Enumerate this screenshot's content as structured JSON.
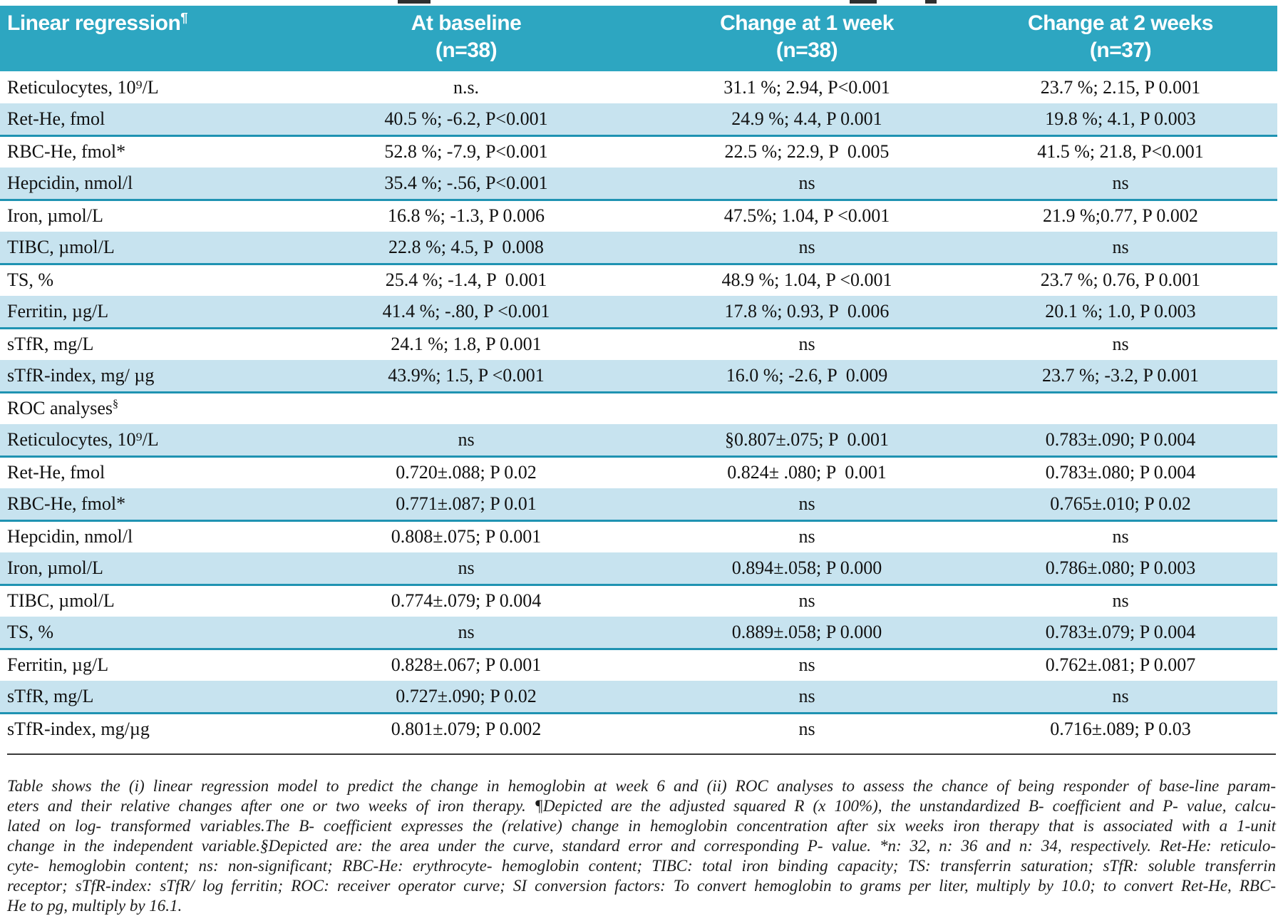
{
  "colors": {
    "header_bg": "#2da6c1",
    "stripe_bg": "#c7e3ef",
    "rule_teal": "#1f93b2",
    "footnote_rule": "#3a3a3a",
    "header_text": "#ffffff",
    "body_text": "#111111"
  },
  "table": {
    "header": {
      "col1": {
        "text": "Linear regression",
        "sup": "¶"
      },
      "col2": {
        "line1": "At baseline",
        "line2": "(n=38)"
      },
      "col3": {
        "line1": "Change at 1 week",
        "line2": "(n=38)"
      },
      "col4": {
        "line1": "Change at 2 weeks",
        "line2": "(n=37)"
      }
    },
    "sections": [
      {
        "label": {
          "text": "Linear regression",
          "sup": "¶"
        },
        "rows": [
          {
            "label": "Reticulocytes, 10⁹/L",
            "cells": [
              "n.s.",
              "31.1 %; 2.94, P<0.001",
              "23.7 %; 2.15, P 0.001"
            ],
            "shaded": false
          },
          {
            "label": "Ret-He, fmol",
            "cells": [
              "40.5 %; -6.2, P<0.001",
              "24.9 %; 4.4, P 0.001",
              "19.8 %; 4.1, P 0.003"
            ],
            "shaded": true
          },
          {
            "label": "RBC-He, fmol*",
            "cells": [
              "52.8 %; -7.9, P<0.001",
              "22.5 %; 22.9, P  0.005",
              "41.5 %; 21.8, P<0.001"
            ],
            "shaded": false
          },
          {
            "label": "Hepcidin, nmol/l",
            "cells": [
              "35.4 %; -.56, P<0.001",
              "ns",
              "ns"
            ],
            "shaded": true
          },
          {
            "label": "Iron, µmol/L",
            "cells": [
              "16.8 %; -1.3, P 0.006",
              "47.5%; 1.04, P <0.001",
              "21.9 %;0.77, P 0.002"
            ],
            "shaded": false
          },
          {
            "label": "TIBC, µmol/L",
            "cells": [
              "22.8 %; 4.5, P  0.008",
              "ns",
              "ns"
            ],
            "shaded": true
          },
          {
            "label": "TS, %",
            "cells": [
              "25.4 %; -1.4, P  0.001",
              "48.9 %; 1.04, P <0.001",
              "23.7 %; 0.76, P 0.001"
            ],
            "shaded": false
          },
          {
            "label": "Ferritin, µg/L",
            "cells": [
              "41.4 %; -.80, P <0.001",
              "17.8 %; 0.93, P  0.006",
              "20.1 %; 1.0, P 0.003"
            ],
            "shaded": true
          },
          {
            "label": "sTfR, mg/L",
            "cells": [
              "24.1 %; 1.8, P 0.001",
              "ns",
              "ns"
            ],
            "shaded": false
          },
          {
            "label": "sTfR-index, mg/ µg",
            "cells": [
              "43.9%; 1.5, P <0.001",
              "16.0 %; -2.6, P  0.009",
              "23.7 %; -3.2, P 0.001"
            ],
            "shaded": true
          }
        ]
      },
      {
        "label": {
          "text": "ROC analyses",
          "sup": "§"
        },
        "rows": [
          {
            "label": "Reticulocytes, 10⁹/L",
            "cells": [
              "ns",
              "§0.807±.075; P  0.001",
              "0.783±.090; P 0.004"
            ],
            "shaded": true
          },
          {
            "label": "Ret-He, fmol",
            "cells": [
              "0.720±.088; P 0.02",
              "0.824± .080; P  0.001",
              "0.783±.080; P 0.004"
            ],
            "shaded": false
          },
          {
            "label": "RBC-He, fmol*",
            "cells": [
              "0.771±.087; P 0.01",
              "ns",
              "0.765±.010; P 0.02"
            ],
            "shaded": true
          },
          {
            "label": "Hepcidin, nmol/l",
            "cells": [
              "0.808±.075; P 0.001",
              "ns",
              "ns"
            ],
            "shaded": false
          },
          {
            "label": "Iron, µmol/L",
            "cells": [
              "ns",
              "0.894±.058; P 0.000",
              "0.786±.080; P 0.003"
            ],
            "shaded": true
          },
          {
            "label": "TIBC, µmol/L",
            "cells": [
              "0.774±.079; P 0.004",
              "ns",
              "ns"
            ],
            "shaded": false
          },
          {
            "label": "TS, %",
            "cells": [
              "ns",
              "0.889±.058; P 0.000",
              "0.783±.079; P 0.004"
            ],
            "shaded": true
          },
          {
            "label": "Ferritin, µg/L",
            "cells": [
              "0.828±.067; P 0.001",
              "ns",
              "0.762±.081; P 0.007"
            ],
            "shaded": false
          },
          {
            "label": "sTfR, mg/L",
            "cells": [
              "0.727±.090; P 0.02",
              "ns",
              "ns"
            ],
            "shaded": true
          },
          {
            "label": "sTfR-index, mg/µg",
            "cells": [
              "0.801±.079; P 0.002",
              "ns",
              "0.716±.089; P 0.03"
            ],
            "shaded": false
          }
        ]
      }
    ]
  },
  "footnote_lines": [
    "Table shows the (i) linear regression model to predict the change in hemoglobin at week 6 and (ii) ROC analyses to assess the  chance of being responder of base-line param-",
    "eters and their relative changes after one or two weeks of iron therapy. ¶Depicted are the adjusted squared R (x 100%), the unstandardized B- coefficient and P- value, calcu-",
    "lated on log- transformed variables.The B- coefficient expresses the (relative) change in hemoglobin concentration after six weeks iron therapy that is associated with a 1-unit",
    "change in the independent variable.§Depicted are: the area under the curve, standard error and corresponding P- value. *n: 32, n: 36 and n: 34, respectively.  Ret-He: reticulo-",
    "cyte- hemoglobin content; ns: non-significant; RBC-He: erythrocyte- hemoglobin content; TIBC: total iron binding capacity; TS: transferrin saturation; sTfR: soluble transferrin",
    "receptor; sTfR-index: sTfR/ log ferritin; ROC: receiver operator curve; SI conversion factors: To convert hemoglobin to grams per liter, multiply by 10.0; to convert Ret-He, RBC-",
    "He to pg, multiply by 16.1."
  ]
}
